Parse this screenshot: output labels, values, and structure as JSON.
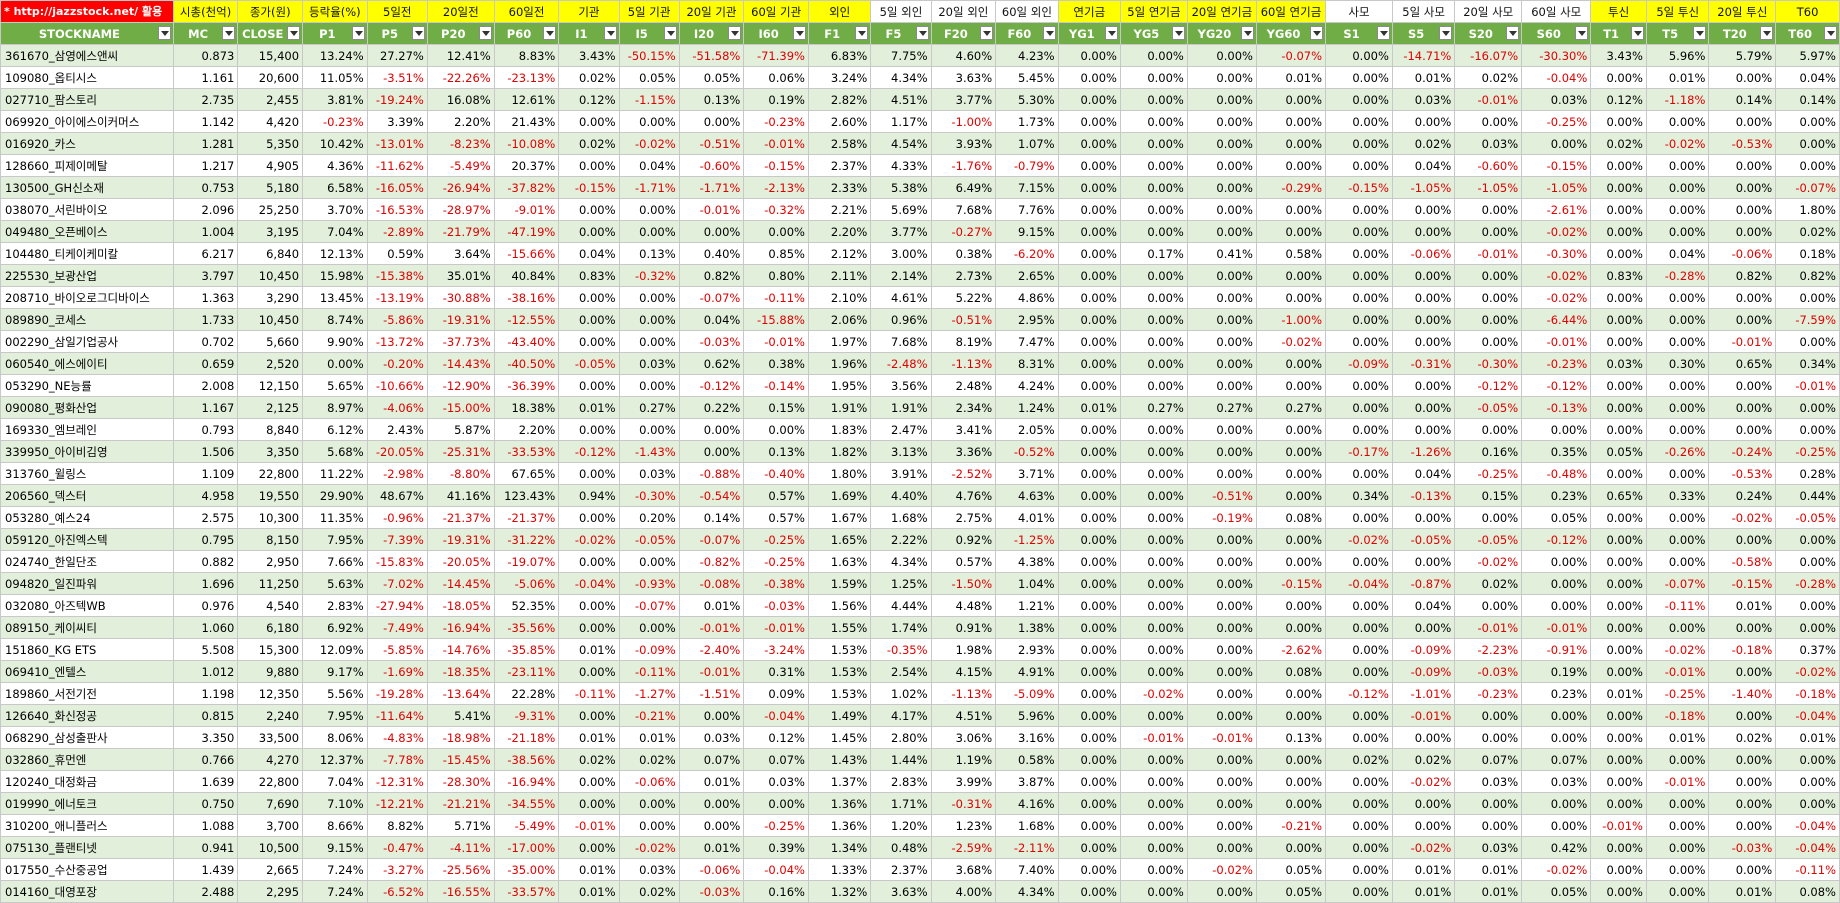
{
  "colors": {
    "header_yellow": "#ffff00",
    "filter_green": "#70ad47",
    "band_green": "#e2efda",
    "negative_red": "#e00000",
    "link_red": "#ff0000"
  },
  "group_headers": [
    "* http://jazzstock.net/ 활용",
    "시총(천억)",
    "종가(원)",
    "등락율(%)",
    "5일전",
    "20일전",
    "60일전",
    "기관",
    "5일 기관",
    "20일 기관",
    "60일 기관",
    "외인",
    "5일 외인",
    "20일 외인",
    "60일 외인",
    "연기금",
    "5일 연기금",
    "20일 연기금",
    "60일 연기금",
    "사모",
    "5일 사모",
    "20일 사모",
    "60일 사모",
    "투신",
    "5일 투신",
    "20일 투신",
    "T60"
  ],
  "columns": [
    "STOCKNAME",
    "MC",
    "CLOSE",
    "P1",
    "P5",
    "P20",
    "P60",
    "I1",
    "I5",
    "I20",
    "I60",
    "F1",
    "F5",
    "F20",
    "F60",
    "YG1",
    "YG5",
    "YG20",
    "YG60",
    "S1",
    "S5",
    "S20",
    "S60",
    "T1",
    "T5",
    "T20",
    "T60"
  ],
  "rows": [
    [
      "361670_삼영에스앤씨",
      "0.873",
      "15,400",
      "13.24%",
      "27.27%",
      "12.41%",
      "8.83%",
      "3.43%",
      "-50.15%",
      "-51.58%",
      "-71.39%",
      "6.83%",
      "7.75%",
      "4.60%",
      "4.23%",
      "0.00%",
      "0.00%",
      "0.00%",
      "-0.07%",
      "0.00%",
      "-14.71%",
      "-16.07%",
      "-30.30%",
      "3.43%",
      "5.96%",
      "5.79%",
      "5.97%"
    ],
    [
      "109080_옵티시스",
      "1.161",
      "20,600",
      "11.05%",
      "-3.51%",
      "-22.26%",
      "-23.13%",
      "0.02%",
      "0.05%",
      "0.05%",
      "0.06%",
      "3.24%",
      "4.34%",
      "3.63%",
      "5.45%",
      "0.00%",
      "0.00%",
      "0.00%",
      "0.01%",
      "0.00%",
      "0.01%",
      "0.02%",
      "-0.04%",
      "0.00%",
      "0.01%",
      "0.00%",
      "0.04%"
    ],
    [
      "027710_팜스토리",
      "2.735",
      "2,455",
      "3.81%",
      "-19.24%",
      "16.08%",
      "12.61%",
      "0.12%",
      "-1.15%",
      "0.13%",
      "0.19%",
      "2.82%",
      "4.51%",
      "3.77%",
      "5.30%",
      "0.00%",
      "0.00%",
      "0.00%",
      "0.00%",
      "0.00%",
      "0.03%",
      "-0.01%",
      "0.03%",
      "0.12%",
      "-1.18%",
      "0.14%",
      "0.14%"
    ],
    [
      "069920_아이에스이커머스",
      "1.142",
      "4,420",
      "-0.23%",
      "3.39%",
      "2.20%",
      "21.43%",
      "0.00%",
      "0.00%",
      "0.00%",
      "-0.23%",
      "2.60%",
      "1.17%",
      "-1.00%",
      "1.73%",
      "0.00%",
      "0.00%",
      "0.00%",
      "0.00%",
      "0.00%",
      "0.00%",
      "0.00%",
      "-0.25%",
      "0.00%",
      "0.00%",
      "0.00%",
      "0.00%"
    ],
    [
      "016920_카스",
      "1.281",
      "5,350",
      "10.42%",
      "-13.01%",
      "-8.23%",
      "-10.08%",
      "0.02%",
      "-0.02%",
      "-0.51%",
      "-0.01%",
      "2.58%",
      "4.54%",
      "3.93%",
      "1.07%",
      "0.00%",
      "0.00%",
      "0.00%",
      "0.00%",
      "0.00%",
      "0.02%",
      "0.03%",
      "0.00%",
      "0.02%",
      "-0.02%",
      "-0.53%",
      "0.00%"
    ],
    [
      "128660_피제이메탈",
      "1.217",
      "4,905",
      "4.36%",
      "-11.62%",
      "-5.49%",
      "20.37%",
      "0.00%",
      "0.04%",
      "-0.60%",
      "-0.15%",
      "2.37%",
      "4.33%",
      "-1.76%",
      "-0.79%",
      "0.00%",
      "0.00%",
      "0.00%",
      "0.00%",
      "0.00%",
      "0.04%",
      "-0.60%",
      "-0.15%",
      "0.00%",
      "0.00%",
      "0.00%",
      "0.00%"
    ],
    [
      "130500_GH신소재",
      "0.753",
      "5,180",
      "6.58%",
      "-16.05%",
      "-26.94%",
      "-37.82%",
      "-0.15%",
      "-1.71%",
      "-1.71%",
      "-2.13%",
      "2.33%",
      "5.38%",
      "6.49%",
      "7.15%",
      "0.00%",
      "0.00%",
      "0.00%",
      "-0.29%",
      "-0.15%",
      "-1.05%",
      "-1.05%",
      "-1.05%",
      "0.00%",
      "0.00%",
      "0.00%",
      "-0.07%"
    ],
    [
      "038070_서린바이오",
      "2.096",
      "25,250",
      "3.70%",
      "-16.53%",
      "-28.97%",
      "-9.01%",
      "0.00%",
      "0.00%",
      "-0.01%",
      "-0.32%",
      "2.21%",
      "5.69%",
      "7.68%",
      "7.76%",
      "0.00%",
      "0.00%",
      "0.00%",
      "0.00%",
      "0.00%",
      "0.00%",
      "0.00%",
      "-2.61%",
      "0.00%",
      "0.00%",
      "0.00%",
      "1.80%"
    ],
    [
      "049480_오픈베이스",
      "1.004",
      "3,195",
      "7.04%",
      "-2.89%",
      "-21.79%",
      "-47.19%",
      "0.00%",
      "0.00%",
      "0.00%",
      "0.00%",
      "2.20%",
      "3.77%",
      "-0.27%",
      "9.15%",
      "0.00%",
      "0.00%",
      "0.00%",
      "0.00%",
      "0.00%",
      "0.00%",
      "0.00%",
      "-0.02%",
      "0.00%",
      "0.00%",
      "0.00%",
      "0.02%"
    ],
    [
      "104480_티케이케미칼",
      "6.217",
      "6,840",
      "12.13%",
      "0.59%",
      "3.64%",
      "-15.66%",
      "0.04%",
      "0.13%",
      "0.40%",
      "0.85%",
      "2.12%",
      "3.00%",
      "0.38%",
      "-6.20%",
      "0.00%",
      "0.17%",
      "0.41%",
      "0.58%",
      "0.00%",
      "-0.06%",
      "-0.01%",
      "-0.30%",
      "0.00%",
      "0.04%",
      "-0.06%",
      "0.18%"
    ],
    [
      "225530_보광산업",
      "3.797",
      "10,450",
      "15.98%",
      "-15.38%",
      "35.01%",
      "40.84%",
      "0.83%",
      "-0.32%",
      "0.82%",
      "0.80%",
      "2.11%",
      "2.14%",
      "2.73%",
      "2.65%",
      "0.00%",
      "0.00%",
      "0.00%",
      "0.00%",
      "0.00%",
      "0.00%",
      "0.00%",
      "-0.02%",
      "0.83%",
      "-0.28%",
      "0.82%",
      "0.82%"
    ],
    [
      "208710_바이오로그디바이스",
      "1.363",
      "3,290",
      "13.45%",
      "-13.19%",
      "-30.88%",
      "-38.16%",
      "0.00%",
      "0.00%",
      "-0.07%",
      "-0.11%",
      "2.10%",
      "4.61%",
      "5.22%",
      "4.86%",
      "0.00%",
      "0.00%",
      "0.00%",
      "0.00%",
      "0.00%",
      "0.00%",
      "0.00%",
      "-0.02%",
      "0.00%",
      "0.00%",
      "0.00%",
      "0.00%"
    ],
    [
      "089890_코세스",
      "1.733",
      "10,450",
      "8.74%",
      "-5.86%",
      "-19.31%",
      "-12.55%",
      "0.00%",
      "0.00%",
      "0.04%",
      "-15.88%",
      "2.06%",
      "0.96%",
      "-0.51%",
      "2.95%",
      "0.00%",
      "0.00%",
      "0.00%",
      "-1.00%",
      "0.00%",
      "0.00%",
      "0.00%",
      "-6.44%",
      "0.00%",
      "0.00%",
      "0.00%",
      "-7.59%"
    ],
    [
      "002290_삼일기업공사",
      "0.702",
      "5,660",
      "9.90%",
      "-13.72%",
      "-37.73%",
      "-43.40%",
      "0.00%",
      "0.00%",
      "-0.03%",
      "-0.01%",
      "1.97%",
      "7.68%",
      "8.19%",
      "7.47%",
      "0.00%",
      "0.00%",
      "0.00%",
      "-0.02%",
      "0.00%",
      "0.00%",
      "0.00%",
      "-0.01%",
      "0.00%",
      "0.00%",
      "-0.01%",
      "0.00%"
    ],
    [
      "060540_에스에이티",
      "0.659",
      "2,520",
      "0.00%",
      "-0.20%",
      "-14.43%",
      "-40.50%",
      "-0.05%",
      "0.03%",
      "0.62%",
      "0.38%",
      "1.96%",
      "-2.48%",
      "-1.13%",
      "8.31%",
      "0.00%",
      "0.00%",
      "0.00%",
      "0.00%",
      "-0.09%",
      "-0.31%",
      "-0.30%",
      "-0.23%",
      "0.03%",
      "0.30%",
      "0.65%",
      "0.34%"
    ],
    [
      "053290_NE능률",
      "2.008",
      "12,150",
      "5.65%",
      "-10.66%",
      "-12.90%",
      "-36.39%",
      "0.00%",
      "0.00%",
      "-0.12%",
      "-0.14%",
      "1.95%",
      "3.56%",
      "2.48%",
      "4.24%",
      "0.00%",
      "0.00%",
      "0.00%",
      "0.00%",
      "0.00%",
      "0.00%",
      "-0.12%",
      "-0.12%",
      "0.00%",
      "0.00%",
      "0.00%",
      "-0.01%"
    ],
    [
      "090080_평화산업",
      "1.167",
      "2,125",
      "8.97%",
      "-4.06%",
      "-15.00%",
      "18.38%",
      "0.01%",
      "0.27%",
      "0.22%",
      "0.15%",
      "1.91%",
      "1.91%",
      "2.34%",
      "1.24%",
      "0.01%",
      "0.27%",
      "0.27%",
      "0.27%",
      "0.00%",
      "0.00%",
      "-0.05%",
      "-0.13%",
      "0.00%",
      "0.00%",
      "0.00%",
      "0.00%"
    ],
    [
      "169330_엠브레인",
      "0.793",
      "8,840",
      "6.12%",
      "2.43%",
      "5.87%",
      "2.20%",
      "0.00%",
      "0.00%",
      "0.00%",
      "0.00%",
      "1.83%",
      "2.47%",
      "3.41%",
      "2.05%",
      "0.00%",
      "0.00%",
      "0.00%",
      "0.00%",
      "0.00%",
      "0.00%",
      "0.00%",
      "0.00%",
      "0.00%",
      "0.00%",
      "0.00%",
      "0.00%"
    ],
    [
      "339950_아이비김영",
      "1.506",
      "3,350",
      "5.68%",
      "-20.05%",
      "-25.31%",
      "-33.53%",
      "-0.12%",
      "-1.43%",
      "0.00%",
      "0.13%",
      "1.82%",
      "3.13%",
      "3.36%",
      "-0.52%",
      "0.00%",
      "0.00%",
      "0.00%",
      "0.00%",
      "-0.17%",
      "-1.26%",
      "0.16%",
      "0.35%",
      "0.05%",
      "-0.26%",
      "-0.24%",
      "-0.25%"
    ],
    [
      "313760_윌링스",
      "1.109",
      "22,800",
      "11.22%",
      "-2.98%",
      "-8.80%",
      "67.65%",
      "0.00%",
      "0.03%",
      "-0.88%",
      "-0.40%",
      "1.80%",
      "3.91%",
      "-2.52%",
      "3.71%",
      "0.00%",
      "0.00%",
      "0.00%",
      "0.00%",
      "0.00%",
      "0.04%",
      "-0.25%",
      "-0.48%",
      "0.00%",
      "0.00%",
      "-0.53%",
      "0.28%"
    ],
    [
      "206560_덱스터",
      "4.958",
      "19,550",
      "29.90%",
      "48.67%",
      "41.16%",
      "123.43%",
      "0.94%",
      "-0.30%",
      "-0.54%",
      "0.57%",
      "1.69%",
      "4.40%",
      "4.76%",
      "4.63%",
      "0.00%",
      "0.00%",
      "-0.51%",
      "0.00%",
      "0.34%",
      "-0.13%",
      "0.15%",
      "0.23%",
      "0.65%",
      "0.33%",
      "0.24%",
      "0.44%"
    ],
    [
      "053280_예스24",
      "2.575",
      "10,300",
      "11.35%",
      "-0.96%",
      "-21.37%",
      "-21.37%",
      "0.00%",
      "0.20%",
      "0.14%",
      "0.57%",
      "1.67%",
      "1.68%",
      "2.75%",
      "4.01%",
      "0.00%",
      "0.00%",
      "-0.19%",
      "0.08%",
      "0.00%",
      "0.00%",
      "0.00%",
      "0.05%",
      "0.00%",
      "0.00%",
      "-0.02%",
      "-0.05%"
    ],
    [
      "059120_아진엑스텍",
      "0.795",
      "8,150",
      "7.95%",
      "-7.39%",
      "-19.31%",
      "-31.22%",
      "-0.02%",
      "-0.05%",
      "-0.07%",
      "-0.25%",
      "1.65%",
      "2.22%",
      "0.92%",
      "-1.25%",
      "0.00%",
      "0.00%",
      "0.00%",
      "0.00%",
      "-0.02%",
      "-0.05%",
      "-0.05%",
      "-0.12%",
      "0.00%",
      "0.00%",
      "0.00%",
      "0.00%"
    ],
    [
      "024740_한일단조",
      "0.882",
      "2,950",
      "7.66%",
      "-15.83%",
      "-20.05%",
      "-19.07%",
      "0.00%",
      "0.00%",
      "-0.82%",
      "-0.25%",
      "1.63%",
      "4.34%",
      "0.57%",
      "4.38%",
      "0.00%",
      "0.00%",
      "0.00%",
      "0.00%",
      "0.00%",
      "0.00%",
      "-0.02%",
      "0.00%",
      "0.00%",
      "0.00%",
      "-0.58%",
      "0.00%"
    ],
    [
      "094820_일진파워",
      "1.696",
      "11,250",
      "5.63%",
      "-7.02%",
      "-14.45%",
      "-5.06%",
      "-0.04%",
      "-0.93%",
      "-0.08%",
      "-0.38%",
      "1.59%",
      "1.25%",
      "-1.50%",
      "1.04%",
      "0.00%",
      "0.00%",
      "0.00%",
      "-0.15%",
      "-0.04%",
      "-0.87%",
      "0.02%",
      "0.00%",
      "0.00%",
      "-0.07%",
      "-0.15%",
      "-0.28%"
    ],
    [
      "032080_아즈텍WB",
      "0.976",
      "4,540",
      "2.83%",
      "-27.94%",
      "-18.05%",
      "52.35%",
      "0.00%",
      "-0.07%",
      "0.01%",
      "-0.03%",
      "1.56%",
      "4.44%",
      "4.48%",
      "1.21%",
      "0.00%",
      "0.00%",
      "0.00%",
      "0.00%",
      "0.00%",
      "0.04%",
      "0.00%",
      "0.00%",
      "0.00%",
      "-0.11%",
      "0.01%",
      "0.00%"
    ],
    [
      "089150_케이씨티",
      "1.060",
      "6,180",
      "6.92%",
      "-7.49%",
      "-16.94%",
      "-35.56%",
      "0.00%",
      "0.00%",
      "-0.01%",
      "-0.01%",
      "1.55%",
      "1.74%",
      "0.91%",
      "1.38%",
      "0.00%",
      "0.00%",
      "0.00%",
      "0.00%",
      "0.00%",
      "0.00%",
      "-0.01%",
      "-0.01%",
      "0.00%",
      "0.00%",
      "0.00%",
      "0.00%"
    ],
    [
      "151860_KG ETS",
      "5.508",
      "15,300",
      "12.09%",
      "-5.85%",
      "-14.76%",
      "-35.85%",
      "0.01%",
      "-0.09%",
      "-2.40%",
      "-3.24%",
      "1.53%",
      "-0.35%",
      "1.98%",
      "2.93%",
      "0.00%",
      "0.00%",
      "0.00%",
      "-2.62%",
      "0.00%",
      "-0.09%",
      "-2.23%",
      "-0.91%",
      "0.00%",
      "-0.02%",
      "-0.18%",
      "0.37%"
    ],
    [
      "069410_엔텔스",
      "1.012",
      "9,880",
      "9.17%",
      "-1.69%",
      "-18.35%",
      "-23.11%",
      "0.00%",
      "-0.11%",
      "-0.01%",
      "0.31%",
      "1.53%",
      "2.54%",
      "4.15%",
      "4.91%",
      "0.00%",
      "0.00%",
      "0.00%",
      "0.08%",
      "0.00%",
      "-0.09%",
      "-0.03%",
      "0.19%",
      "0.00%",
      "-0.01%",
      "0.00%",
      "-0.02%"
    ],
    [
      "189860_서전기전",
      "1.198",
      "12,350",
      "5.56%",
      "-19.28%",
      "-13.64%",
      "22.28%",
      "-0.11%",
      "-1.27%",
      "-1.51%",
      "0.09%",
      "1.53%",
      "1.02%",
      "-1.13%",
      "-5.09%",
      "0.00%",
      "-0.02%",
      "0.00%",
      "0.00%",
      "-0.12%",
      "-1.01%",
      "-0.23%",
      "0.23%",
      "0.01%",
      "-0.25%",
      "-1.40%",
      "-0.18%"
    ],
    [
      "126640_화신정공",
      "0.815",
      "2,240",
      "7.95%",
      "-11.64%",
      "5.41%",
      "-9.31%",
      "0.00%",
      "-0.21%",
      "0.00%",
      "-0.04%",
      "1.49%",
      "4.17%",
      "4.51%",
      "5.96%",
      "0.00%",
      "0.00%",
      "0.00%",
      "0.00%",
      "0.00%",
      "-0.01%",
      "0.00%",
      "0.00%",
      "0.00%",
      "-0.18%",
      "0.00%",
      "-0.04%"
    ],
    [
      "068290_삼성출판사",
      "3.350",
      "33,500",
      "8.06%",
      "-4.83%",
      "-18.98%",
      "-21.18%",
      "0.01%",
      "0.01%",
      "0.03%",
      "0.12%",
      "1.45%",
      "2.80%",
      "3.06%",
      "3.16%",
      "0.00%",
      "-0.01%",
      "-0.01%",
      "0.13%",
      "0.00%",
      "0.00%",
      "0.00%",
      "0.00%",
      "0.00%",
      "0.01%",
      "0.02%",
      "0.01%"
    ],
    [
      "032860_휴먼엔",
      "0.766",
      "4,270",
      "12.37%",
      "-7.78%",
      "-15.45%",
      "-38.56%",
      "0.02%",
      "0.02%",
      "0.07%",
      "0.07%",
      "1.43%",
      "1.44%",
      "1.19%",
      "0.58%",
      "0.00%",
      "0.00%",
      "0.00%",
      "0.00%",
      "0.02%",
      "0.02%",
      "0.07%",
      "0.07%",
      "0.00%",
      "0.00%",
      "0.00%",
      "0.00%"
    ],
    [
      "120240_대정화금",
      "1.639",
      "22,800",
      "7.04%",
      "-12.31%",
      "-28.30%",
      "-16.94%",
      "0.00%",
      "-0.06%",
      "0.01%",
      "0.03%",
      "1.37%",
      "2.83%",
      "3.99%",
      "3.87%",
      "0.00%",
      "0.00%",
      "0.00%",
      "0.00%",
      "0.00%",
      "-0.02%",
      "0.03%",
      "0.03%",
      "0.00%",
      "-0.01%",
      "0.00%",
      "0.00%"
    ],
    [
      "019990_에너토크",
      "0.750",
      "7,690",
      "7.10%",
      "-12.21%",
      "-21.21%",
      "-34.55%",
      "0.00%",
      "0.00%",
      "0.00%",
      "0.00%",
      "1.36%",
      "1.71%",
      "-0.31%",
      "4.16%",
      "0.00%",
      "0.00%",
      "0.00%",
      "0.00%",
      "0.00%",
      "0.00%",
      "0.00%",
      "0.00%",
      "0.00%",
      "0.00%",
      "0.00%",
      "0.00%"
    ],
    [
      "310200_애니플러스",
      "1.088",
      "3,700",
      "8.66%",
      "8.82%",
      "5.71%",
      "-5.49%",
      "-0.01%",
      "0.00%",
      "0.00%",
      "-0.25%",
      "1.36%",
      "1.20%",
      "1.23%",
      "1.68%",
      "0.00%",
      "0.00%",
      "0.00%",
      "-0.21%",
      "0.00%",
      "0.00%",
      "0.00%",
      "0.00%",
      "-0.01%",
      "0.00%",
      "0.00%",
      "-0.04%"
    ],
    [
      "075130_플랜티넷",
      "0.941",
      "10,500",
      "9.15%",
      "-0.47%",
      "-4.11%",
      "-17.00%",
      "0.00%",
      "-0.02%",
      "0.01%",
      "0.39%",
      "1.34%",
      "0.48%",
      "-2.59%",
      "-2.11%",
      "0.00%",
      "0.00%",
      "0.00%",
      "0.00%",
      "0.00%",
      "-0.02%",
      "0.03%",
      "0.42%",
      "0.00%",
      "0.00%",
      "-0.03%",
      "-0.04%"
    ],
    [
      "017550_수산중공업",
      "1.439",
      "2,665",
      "7.24%",
      "-3.27%",
      "-25.56%",
      "-35.00%",
      "0.01%",
      "0.03%",
      "-0.06%",
      "-0.04%",
      "1.33%",
      "2.37%",
      "3.68%",
      "7.40%",
      "0.00%",
      "0.00%",
      "-0.02%",
      "0.05%",
      "0.00%",
      "0.01%",
      "0.01%",
      "-0.02%",
      "0.00%",
      "0.00%",
      "0.00%",
      "-0.11%"
    ],
    [
      "014160_대영포장",
      "2.488",
      "2,295",
      "7.24%",
      "-6.52%",
      "-16.55%",
      "-33.57%",
      "0.01%",
      "0.02%",
      "-0.03%",
      "0.16%",
      "1.32%",
      "3.63%",
      "4.00%",
      "4.34%",
      "0.00%",
      "0.00%",
      "0.00%",
      "0.05%",
      "0.00%",
      "0.01%",
      "0.01%",
      "0.05%",
      "0.00%",
      "0.00%",
      "0.01%",
      "0.08%"
    ]
  ]
}
